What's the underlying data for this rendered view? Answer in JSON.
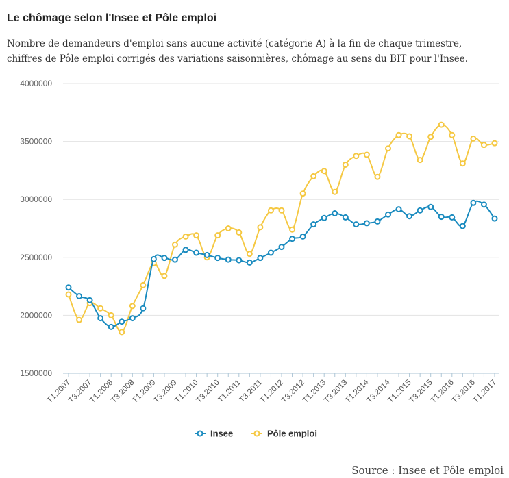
{
  "header": {
    "title": "Le chômage selon l'Insee et Pôle emploi",
    "subtitle": "Nombre de demandeurs d'emploi sans aucune activité (catégorie A) à la fin de chaque trimestre, chiffres de Pôle emploi corrigés des variations saisonnières, chômage au sens du BIT pour l'Insee."
  },
  "footer": {
    "source": "Source : Insee et Pôle emploi"
  },
  "chart_data": {
    "type": "line",
    "title": "Le chômage selon l'Insee et Pôle emploi",
    "subtitle": "Nombre de demandeurs d'emploi sans aucune activité (catégorie A) à la fin de chaque trimestre, chiffres de Pôle emploi corrigés des variations saisonnières, chômage au sens du BIT pour l'Insee.",
    "xlabel": "",
    "ylabel": "",
    "ylim": [
      1500000,
      4000000
    ],
    "yticks": [
      1500000,
      2000000,
      2500000,
      3000000,
      3500000,
      4000000
    ],
    "x": [
      "T1.2007",
      "T2.2007",
      "T3.2007",
      "T4.2007",
      "T1.2008",
      "T2.2008",
      "T3.2008",
      "T4.2008",
      "T1.2009",
      "T2.2009",
      "T3.2009",
      "T4.2009",
      "T1.2010",
      "T2.2010",
      "T3.2010",
      "T4.2010",
      "T1.2011",
      "T2.2011",
      "T3.2011",
      "T4.2011",
      "T1.2012",
      "T2.2012",
      "T3.2012",
      "T4.2012",
      "T1.2013",
      "T2.2013",
      "T3.2013",
      "T4.2013",
      "T1.2014",
      "T2.2014",
      "T3.2014",
      "T4.2014",
      "T1.2015",
      "T2.2015",
      "T3.2015",
      "T4.2015",
      "T1.2016",
      "T2.2016",
      "T3.2016",
      "T4.2016",
      "T1.2017"
    ],
    "x_tick_labels": [
      "T1.2007",
      "T3.2007",
      "T1.2008",
      "T3.2008",
      "T1.2009",
      "T3.2009",
      "T1.2010",
      "T3.2010",
      "T1.2011",
      "T3.2011",
      "T1.2012",
      "T3.2012",
      "T1.2013",
      "T3.2013",
      "T1.2014",
      "T3.2014",
      "T1.2015",
      "T3.2015",
      "T1.2016",
      "T3.2016",
      "T1.2017"
    ],
    "grid": true,
    "legend_position": "bottom-center",
    "series": [
      {
        "name": "Insee",
        "color": "#1a8bbf",
        "values": [
          2240000,
          2165000,
          2130000,
          1975000,
          1900000,
          1945000,
          1975000,
          2060000,
          2485000,
          2495000,
          2480000,
          2565000,
          2540000,
          2520000,
          2495000,
          2480000,
          2475000,
          2455000,
          2495000,
          2540000,
          2590000,
          2660000,
          2680000,
          2785000,
          2840000,
          2880000,
          2845000,
          2785000,
          2795000,
          2810000,
          2870000,
          2915000,
          2855000,
          2905000,
          2935000,
          2850000,
          2845000,
          2770000,
          2970000,
          2955000,
          2835000
        ]
      },
      {
        "name": "Pôle emploi",
        "color": "#f5c842",
        "values": [
          2180000,
          1960000,
          2105000,
          2060000,
          2000000,
          1855000,
          2080000,
          2260000,
          2450000,
          2340000,
          2610000,
          2680000,
          2690000,
          2500000,
          2690000,
          2750000,
          2715000,
          2530000,
          2760000,
          2905000,
          2905000,
          2740000,
          3050000,
          3200000,
          3245000,
          3065000,
          3300000,
          3375000,
          3385000,
          3195000,
          3440000,
          3555000,
          3545000,
          3340000,
          3540000,
          3645000,
          3555000,
          3310000,
          3525000,
          3470000,
          3485000
        ]
      }
    ]
  }
}
